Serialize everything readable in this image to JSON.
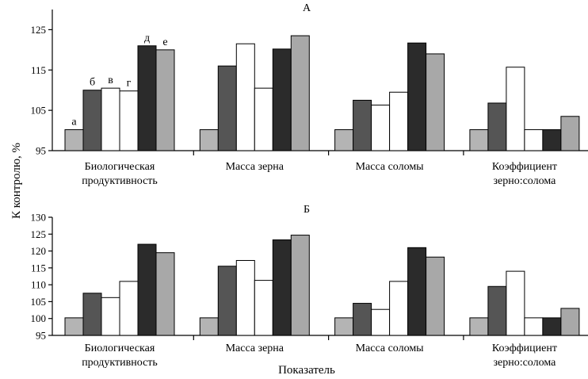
{
  "chart_data": [
    {
      "type": "bar",
      "title": "А",
      "categories": [
        "Биологическая\nпродуктивность",
        "Масса зерна",
        "Масса соломы",
        "Коэффициент\nзерно:солома"
      ],
      "series": [
        {
          "name": "а",
          "values": [
            100.2,
            100.2,
            100.2,
            100.2
          ]
        },
        {
          "name": "б",
          "values": [
            110.0,
            116.0,
            107.5,
            106.8
          ]
        },
        {
          "name": "в",
          "values": [
            110.5,
            121.5,
            106.3,
            115.7
          ]
        },
        {
          "name": "г",
          "values": [
            109.8,
            110.5,
            109.5,
            100.2
          ]
        },
        {
          "name": "д",
          "values": [
            121.0,
            120.2,
            121.7,
            100.2
          ]
        },
        {
          "name": "е",
          "values": [
            120.0,
            123.5,
            119.0,
            103.5
          ]
        }
      ],
      "ylim": [
        95,
        130
      ],
      "yticks": [
        95,
        105,
        115,
        125
      ],
      "xlabel": "",
      "ylabel": ""
    },
    {
      "type": "bar",
      "title": "Б",
      "categories": [
        "Биологическая\nпродуктивность",
        "Масса зерна",
        "Масса соломы",
        "Коэффициент\nзерно:солома"
      ],
      "series": [
        {
          "name": "а",
          "values": [
            100.2,
            100.2,
            100.2,
            100.2
          ]
        },
        {
          "name": "б",
          "values": [
            107.5,
            115.5,
            104.5,
            109.5
          ]
        },
        {
          "name": "в",
          "values": [
            106.2,
            117.2,
            102.7,
            114.0
          ]
        },
        {
          "name": "г",
          "values": [
            111.0,
            111.3,
            111.0,
            100.2
          ]
        },
        {
          "name": "д",
          "values": [
            122.0,
            123.3,
            121.0,
            100.2
          ]
        },
        {
          "name": "е",
          "values": [
            119.5,
            124.7,
            118.2,
            103.0
          ]
        }
      ],
      "ylim": [
        95,
        130
      ],
      "yticks": [
        95,
        100,
        105,
        110,
        115,
        120,
        125,
        130
      ],
      "xlabel": "",
      "ylabel": ""
    }
  ],
  "shared": {
    "ylabel": "К контролю, %",
    "xlabel": "Показатель"
  },
  "series_colors": [
    "#b4b4b4",
    "#555555",
    "#ffffff",
    "#ffffff",
    "#2b2b2b",
    "#a8a8a8"
  ]
}
